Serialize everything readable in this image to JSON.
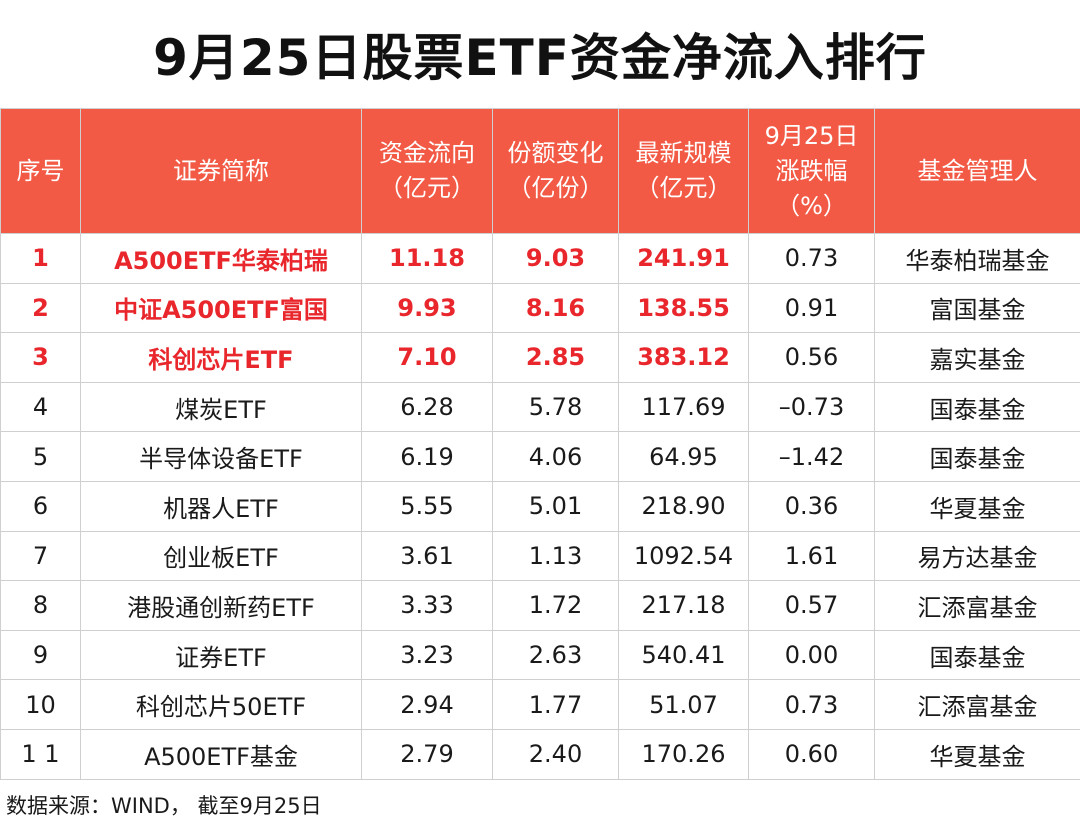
{
  "title": "9月25日股票ETF资金净流入排行",
  "colors": {
    "header_bg": "#f25a45",
    "highlight_text": "#e8262b"
  },
  "table": {
    "headers": [
      [
        "序号"
      ],
      [
        "证券简称"
      ],
      [
        "资金流向",
        "（亿元）"
      ],
      [
        "份额变化",
        "（亿份）"
      ],
      [
        "最新规模",
        "（亿元）"
      ],
      [
        "9月25日",
        "涨跌幅",
        "（%）"
      ],
      [
        "基金管理人"
      ]
    ],
    "rows": [
      [
        "1",
        "A500ETF华泰柏瑞",
        "11.18",
        "9.03",
        "241.91",
        "0.73",
        "华泰柏瑞基金"
      ],
      [
        "2",
        "中证A500ETF富国",
        "9.93",
        "8.16",
        "138.55",
        "0.91",
        "富国基金"
      ],
      [
        "3",
        "科创芯片ETF",
        "7.10",
        "2.85",
        "383.12",
        "0.56",
        "嘉实基金"
      ],
      [
        "4",
        "煤炭ETF",
        "6.28",
        "5.78",
        "117.69",
        "–0.73",
        "国泰基金"
      ],
      [
        "5",
        "半导体设备ETF",
        "6.19",
        "4.06",
        "64.95",
        "–1.42",
        "国泰基金"
      ],
      [
        "6",
        "机器人ETF",
        "5.55",
        "5.01",
        "218.90",
        "0.36",
        "华夏基金"
      ],
      [
        "7",
        "创业板ETF",
        "3.61",
        "1.13",
        "1092.54",
        "1.61",
        "易方达基金"
      ],
      [
        "8",
        "港股通创新药ETF",
        "3.33",
        "1.72",
        "217.18",
        "0.57",
        "汇添富基金"
      ],
      [
        "9",
        "证券ETF",
        "3.23",
        "2.63",
        "540.41",
        "0.00",
        "国泰基金"
      ],
      [
        "10",
        "科创芯片50ETF",
        "2.94",
        "1.77",
        "51.07",
        "0.73",
        "汇添富基金"
      ],
      [
        "1 1",
        "A500ETF基金",
        "2.79",
        "2.40",
        "170.26",
        "0.60",
        "华夏基金"
      ]
    ]
  },
  "footer": "数据来源：WIND，  截至9月25日"
}
